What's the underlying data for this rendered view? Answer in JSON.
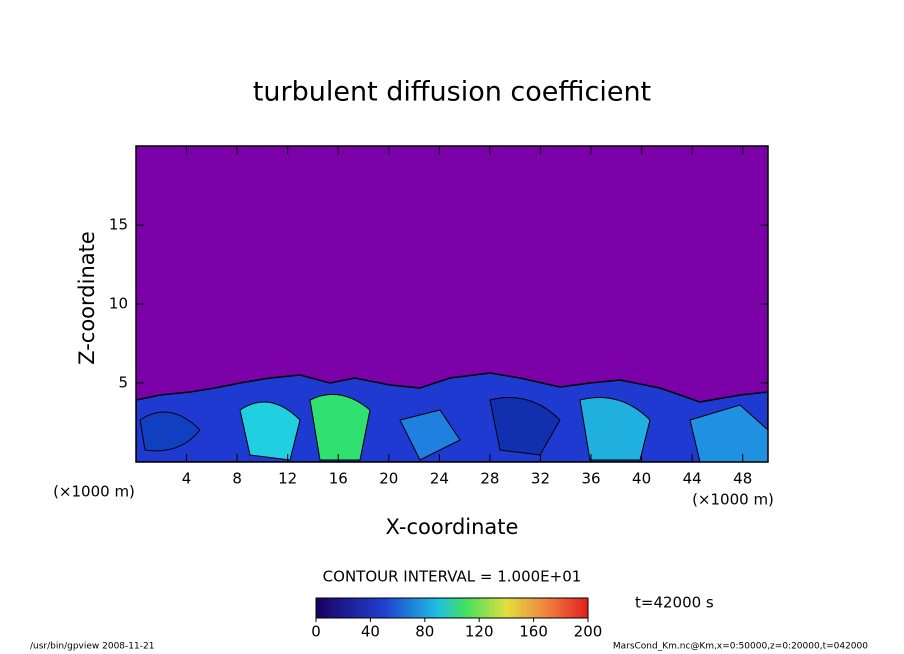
{
  "chart_data": {
    "type": "contour",
    "title": "turbulent diffusion coefficient",
    "x_label": "X-coordinate",
    "y_label": "Z-coordinate",
    "x_unit_labels": [
      "(×1000 m)",
      "(×1000 m)"
    ],
    "xlim": [
      0,
      50
    ],
    "xticks": [
      4,
      8,
      12,
      16,
      20,
      24,
      28,
      32,
      36,
      40,
      44,
      48
    ],
    "ylim": [
      0,
      20
    ],
    "yticks": [
      5,
      10,
      15
    ],
    "contour_interval_label": "CONTOUR INTERVAL = 1.000E+01",
    "time_label": "t=42000 s",
    "colorbar": {
      "lim": [
        0,
        200
      ],
      "ticks": [
        0,
        40,
        80,
        120,
        160,
        200
      ]
    },
    "footer_left": "/usr/bin/gpview  2008-11-21",
    "footer_right": "MarsCond_Km.nc@Km,x=0:50000,z=0:20000,t=042000"
  }
}
